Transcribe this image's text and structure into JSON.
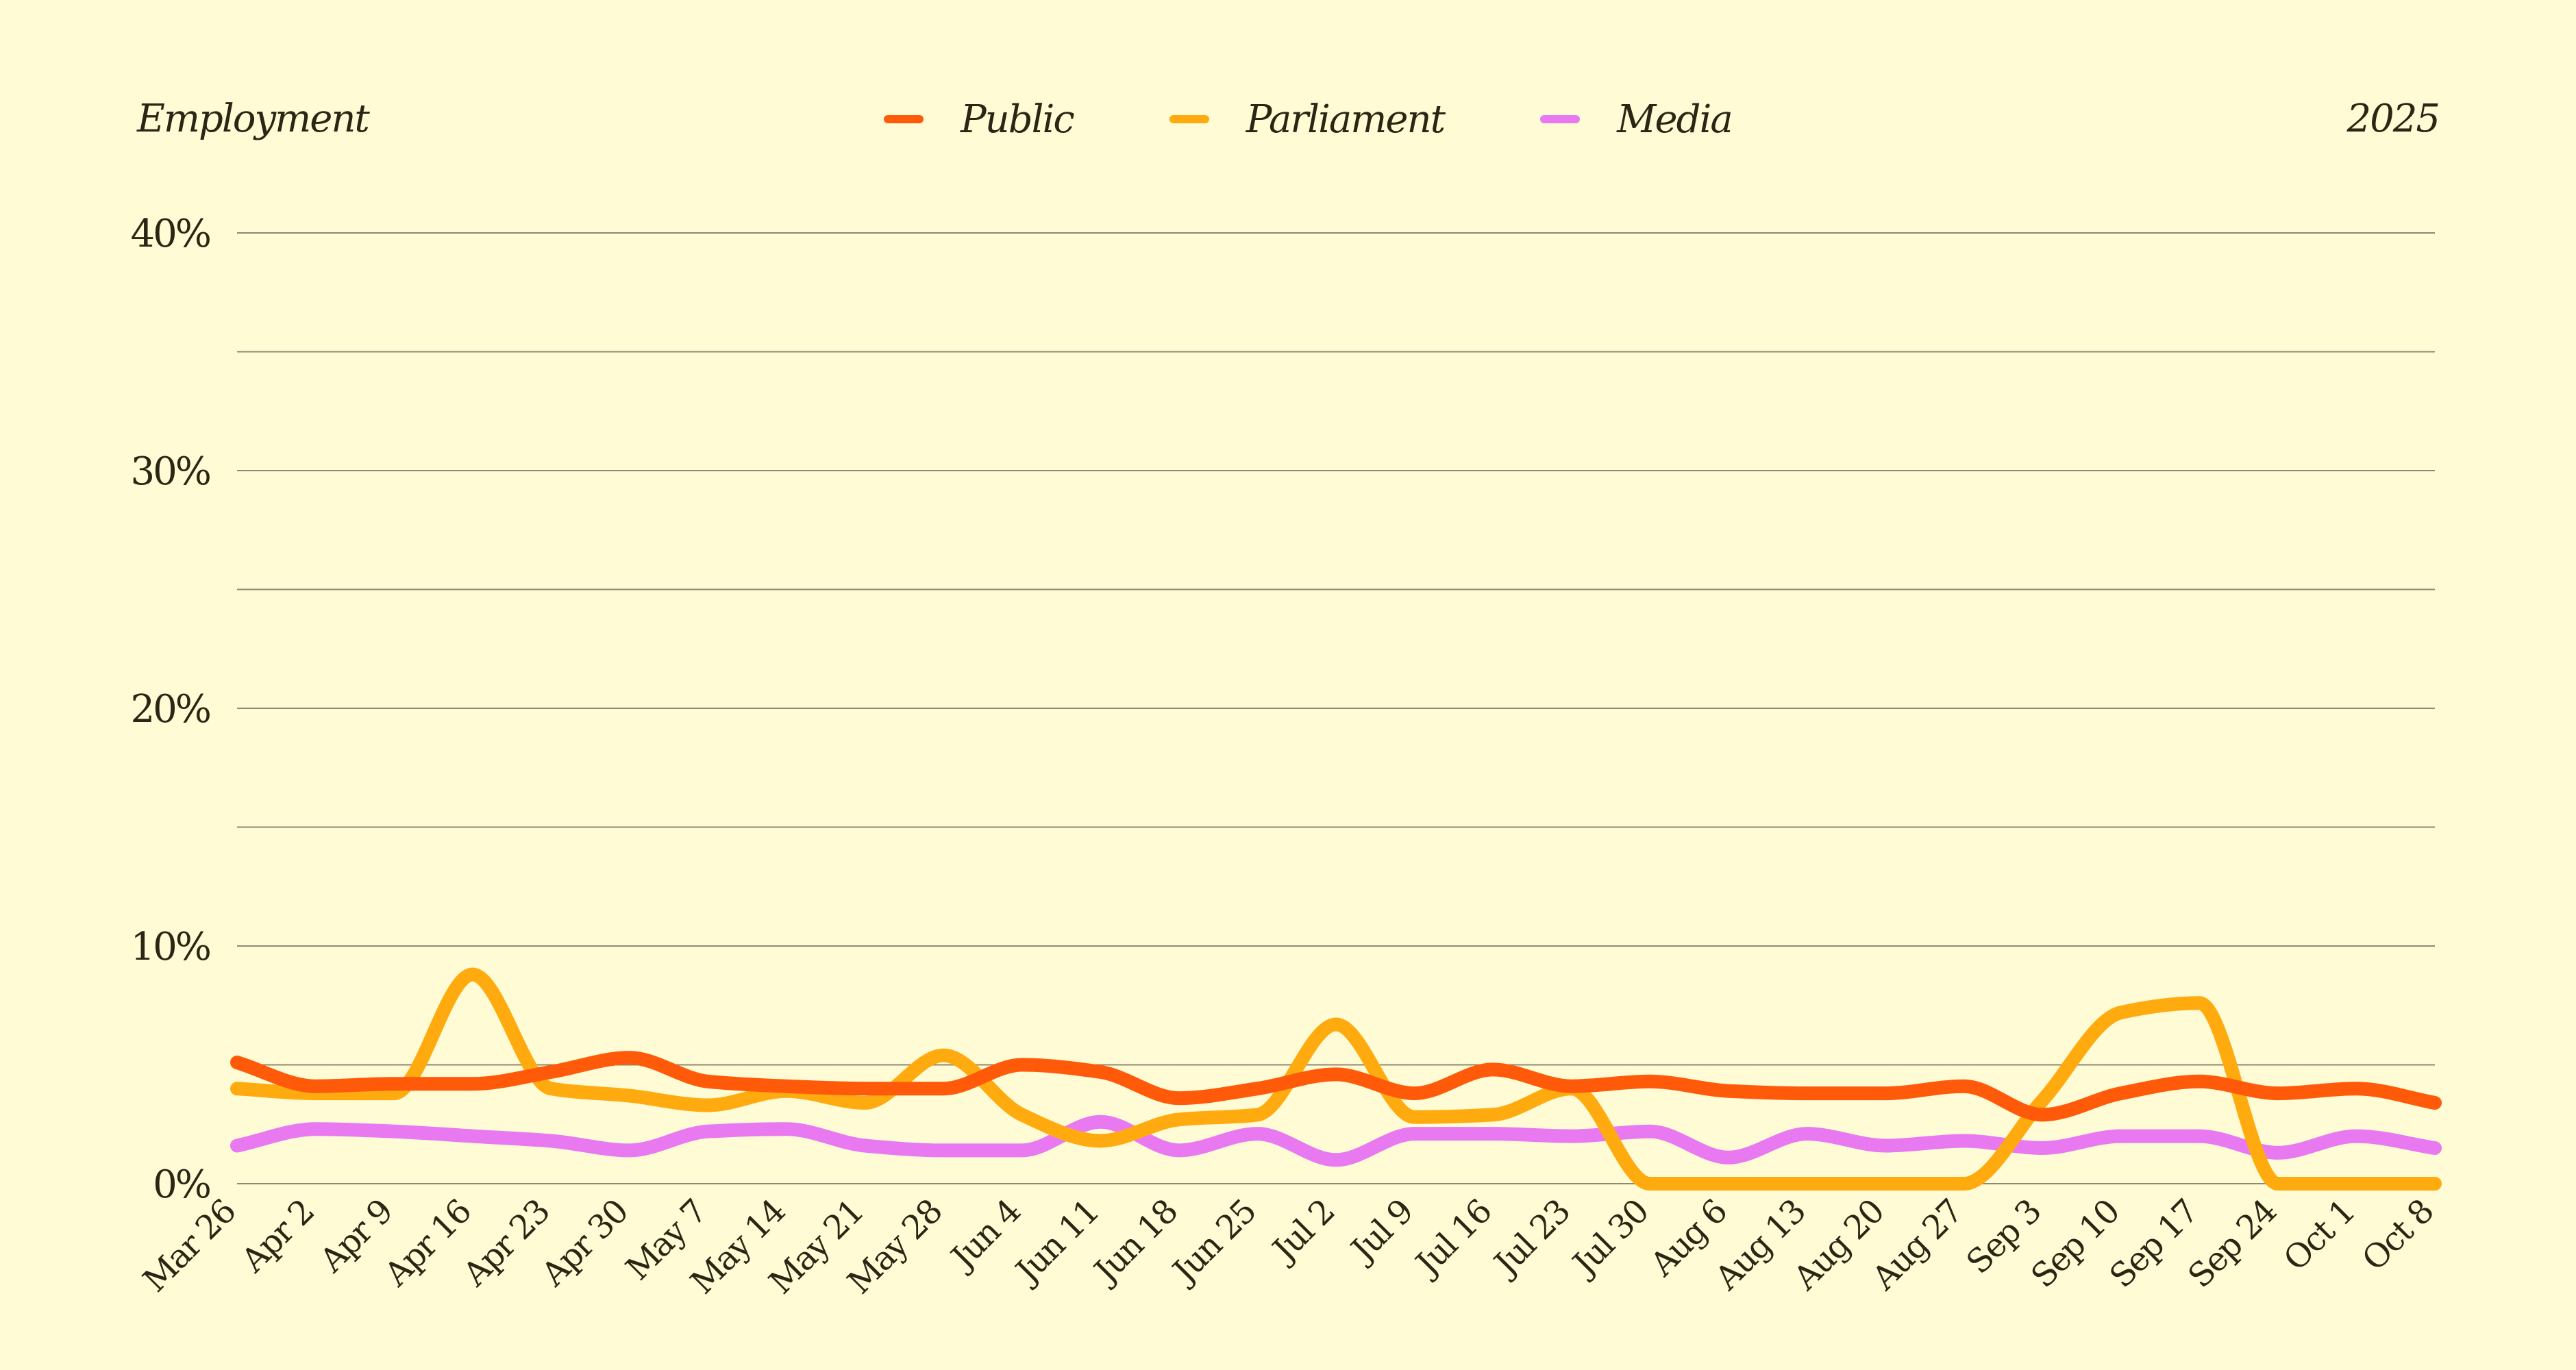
{
  "chart_data": {
    "type": "line",
    "title": "Employment",
    "year": "2025",
    "categories": [
      "Mar 26",
      "Apr 2",
      "Apr 9",
      "Apr 16",
      "Apr 23",
      "Apr 30",
      "May 7",
      "May 14",
      "May 21",
      "May 28",
      "Jun 4",
      "Jun 11",
      "Jun 18",
      "Jun 25",
      "Jul 2",
      "Jul 9",
      "Jul 16",
      "Jul 23",
      "Jul 30",
      "Aug 6",
      "Aug 13",
      "Aug 20",
      "Aug 27",
      "Sep 3",
      "Sep 10",
      "Sep 17",
      "Sep 24",
      "Oct 1",
      "Oct 8"
    ],
    "ylim": [
      0,
      40
    ],
    "yticks": [
      "0%",
      "10%",
      "20%",
      "30%",
      "40%"
    ],
    "yticks_values": [
      0,
      10,
      20,
      30,
      40
    ],
    "minor_gridlines": [
      5,
      15,
      25,
      35
    ],
    "grid": true,
    "legend": "top-center",
    "series": [
      {
        "name": "Public",
        "color": "#ff5a0a",
        "values": [
          5.1,
          4.1,
          4.2,
          4.2,
          4.7,
          5.3,
          4.3,
          4.1,
          4.0,
          4.0,
          5.0,
          4.7,
          3.6,
          4.0,
          4.6,
          3.8,
          4.8,
          4.1,
          4.3,
          3.9,
          3.8,
          3.8,
          4.1,
          2.9,
          3.8,
          4.3,
          3.8,
          4.0,
          3.4
        ]
      },
      {
        "name": "Parliament",
        "color": "#ffab0f",
        "values": [
          4.0,
          3.8,
          3.8,
          8.8,
          4.0,
          3.7,
          3.3,
          3.9,
          3.4,
          5.4,
          2.9,
          1.8,
          2.7,
          2.9,
          6.7,
          2.8,
          2.9,
          4.0,
          0.0,
          0.0,
          0.0,
          0.0,
          0.0,
          3.5,
          7.2,
          7.6,
          0.0,
          0.0,
          0.0
        ]
      },
      {
        "name": "Media",
        "color": "#e879f0",
        "values": [
          1.6,
          2.3,
          2.2,
          2.0,
          1.8,
          1.4,
          2.2,
          2.3,
          1.6,
          1.4,
          1.4,
          2.6,
          1.4,
          2.1,
          1.0,
          2.1,
          2.1,
          2.0,
          2.2,
          1.1,
          2.1,
          1.6,
          1.8,
          1.5,
          2.0,
          2.0,
          1.3,
          2.0,
          1.5
        ]
      }
    ]
  }
}
